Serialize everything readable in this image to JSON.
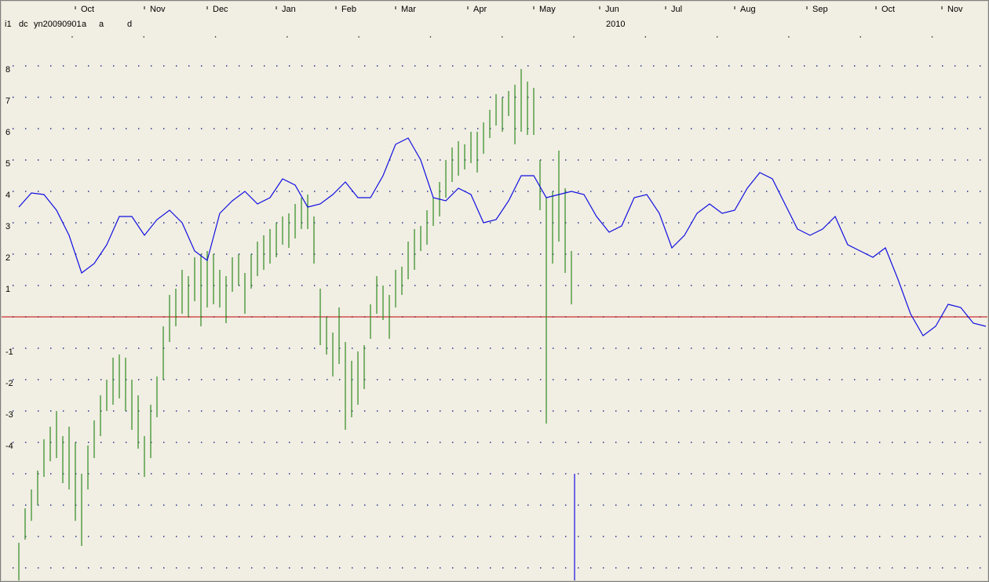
{
  "chart_data": {
    "type": "hilo",
    "header": [
      "i1",
      "dc",
      "yn20090901",
      "a",
      "a",
      "d"
    ],
    "annotation": "2010",
    "xlim": [
      -6,
      309
    ],
    "ylim": [
      -8.45,
      10.1
    ],
    "xticks": [
      {
        "value": 18,
        "label": "Oct"
      },
      {
        "value": 40,
        "label": "Nov"
      },
      {
        "value": 60,
        "label": "Dec"
      },
      {
        "value": 82,
        "label": "Jan"
      },
      {
        "value": 101,
        "label": "Feb"
      },
      {
        "value": 120,
        "label": "Mar"
      },
      {
        "value": 143,
        "label": "Apr"
      },
      {
        "value": 164,
        "label": "May"
      },
      {
        "value": 185,
        "label": "Jun"
      },
      {
        "value": 206,
        "label": "Jul"
      },
      {
        "value": 228,
        "label": "Aug"
      },
      {
        "value": 251,
        "label": "Sep"
      },
      {
        "value": 273,
        "label": "Oct"
      },
      {
        "value": 294,
        "label": "Nov"
      }
    ],
    "yticks": [
      8,
      7,
      6,
      5,
      4,
      3,
      2,
      1,
      -1,
      -2,
      -3,
      -4
    ],
    "ygrid": [
      8,
      7,
      6,
      5,
      4,
      3,
      2,
      1,
      0,
      -1,
      -2,
      -3,
      -4,
      -5,
      -6,
      -7,
      -8
    ],
    "grid": true,
    "bars": {
      "color": "#2f8a1f",
      "x": [
        0,
        2,
        4,
        6,
        8,
        10,
        12,
        14,
        16,
        18,
        20,
        22,
        24,
        26,
        28,
        30,
        32,
        34,
        36,
        38,
        40,
        42,
        44,
        46,
        48,
        50,
        52,
        54,
        56,
        58,
        60,
        62,
        64,
        66,
        68,
        70,
        72,
        74,
        76,
        78,
        80,
        82,
        84,
        86,
        88,
        90,
        92,
        94,
        96,
        98,
        100,
        102,
        104,
        106,
        108,
        110,
        112,
        114,
        116,
        118,
        120,
        122,
        124,
        126,
        128,
        130,
        132,
        134,
        136,
        138,
        140,
        142,
        144,
        146,
        148,
        150,
        152,
        154,
        156,
        158,
        160,
        162,
        164,
        166,
        168,
        170,
        172,
        174,
        176
      ],
      "high": [
        -7.2,
        -6.1,
        -5.5,
        -4.9,
        -3.9,
        -3.5,
        -3.0,
        -3.8,
        -3.5,
        -4.0,
        -5.0,
        -4.1,
        -3.3,
        -2.5,
        -2.0,
        -1.3,
        -1.2,
        -1.3,
        -2.0,
        -2.5,
        -3.8,
        -2.8,
        -1.9,
        -0.3,
        0.7,
        0.9,
        1.5,
        1.3,
        1.9,
        2.0,
        2.1,
        2.0,
        1.5,
        1.3,
        1.9,
        2.0,
        1.4,
        2.0,
        2.4,
        2.6,
        2.8,
        3.0,
        3.2,
        3.3,
        3.6,
        3.8,
        3.9,
        3.2,
        0.9,
        0.0,
        -0.5,
        0.3,
        -0.8,
        -1.4,
        -1.1,
        -0.9,
        0.4,
        1.3,
        1.0,
        0.7,
        1.5,
        1.6,
        2.4,
        2.8,
        2.9,
        3.4,
        3.8,
        4.3,
        5.0,
        5.4,
        5.6,
        5.5,
        5.9,
        5.9,
        6.2,
        6.6,
        7.1,
        7.0,
        7.2,
        7.4,
        7.9,
        7.5,
        7.3,
        5.0,
        3.8,
        4.0,
        5.3,
        4.1,
        2.1
      ],
      "low": [
        -8.4,
        -7.1,
        -6.5,
        -6.0,
        -5.1,
        -4.6,
        -4.5,
        -5.3,
        -5.5,
        -6.5,
        -7.3,
        -5.5,
        -4.5,
        -3.8,
        -3.0,
        -2.8,
        -2.6,
        -3.0,
        -3.6,
        -4.2,
        -5.1,
        -4.5,
        -3.2,
        -2.0,
        -0.8,
        -0.3,
        0.1,
        0.0,
        0.5,
        -0.3,
        0.3,
        0.4,
        0.3,
        -0.2,
        0.8,
        1.0,
        0.1,
        0.9,
        1.3,
        1.5,
        1.7,
        1.9,
        2.3,
        2.2,
        2.5,
        2.8,
        2.8,
        1.7,
        -0.9,
        -1.2,
        -1.9,
        -1.5,
        -3.6,
        -3.2,
        -2.8,
        -2.3,
        -0.7,
        0.1,
        -0.1,
        -0.7,
        0.3,
        0.7,
        1.2,
        1.5,
        2.1,
        2.3,
        2.9,
        3.2,
        3.8,
        4.3,
        4.5,
        4.7,
        4.9,
        4.6,
        5.2,
        5.7,
        6.1,
        5.9,
        6.4,
        5.5,
        5.9,
        5.8,
        5.8,
        3.4,
        -3.4,
        1.7,
        2.4,
        1.4,
        0.4
      ]
    },
    "line": {
      "color": "#1010e0",
      "x": [
        0,
        4,
        8,
        12,
        16,
        20,
        24,
        28,
        32,
        36,
        40,
        44,
        48,
        52,
        56,
        60,
        64,
        68,
        72,
        76,
        80,
        84,
        88,
        92,
        96,
        100,
        104,
        108,
        112,
        116,
        120,
        124,
        128,
        132,
        136,
        140,
        144,
        148,
        152,
        156,
        160,
        164,
        168,
        172,
        176,
        180,
        184,
        188,
        192,
        196,
        200,
        204,
        208,
        212,
        216,
        220,
        224,
        228,
        232,
        236,
        240,
        244,
        248,
        252,
        256,
        260,
        264,
        268,
        272,
        276,
        280,
        284,
        288,
        292,
        296,
        300,
        304,
        308
      ],
      "values": [
        3.5,
        3.95,
        3.9,
        3.4,
        2.6,
        1.4,
        1.7,
        2.3,
        3.2,
        3.2,
        2.6,
        3.1,
        3.4,
        3.0,
        2.1,
        1.8,
        3.3,
        3.7,
        4.0,
        3.6,
        3.8,
        4.4,
        4.2,
        3.5,
        3.6,
        3.9,
        4.3,
        3.8,
        3.8,
        4.5,
        5.5,
        5.7,
        5.0,
        3.8,
        3.7,
        4.1,
        3.9,
        3.0,
        3.1,
        3.7,
        4.5,
        4.5,
        3.8,
        3.9,
        4.0,
        3.9,
        3.2,
        2.7,
        2.9,
        3.8,
        3.9,
        3.3,
        2.2,
        2.6,
        3.3,
        3.6,
        3.3,
        3.4,
        4.1,
        4.6,
        4.4,
        3.6,
        2.8,
        2.6,
        2.8,
        3.2,
        2.3,
        2.1,
        1.9,
        2.2,
        1.2,
        0.1,
        -0.6,
        -0.3,
        0.4,
        0.3,
        -0.2,
        -0.3
      ]
    },
    "zero_line": {
      "y": 0,
      "color": "#c00000"
    },
    "spike": {
      "x": 177,
      "y": -5,
      "color": "#1010e0"
    }
  }
}
